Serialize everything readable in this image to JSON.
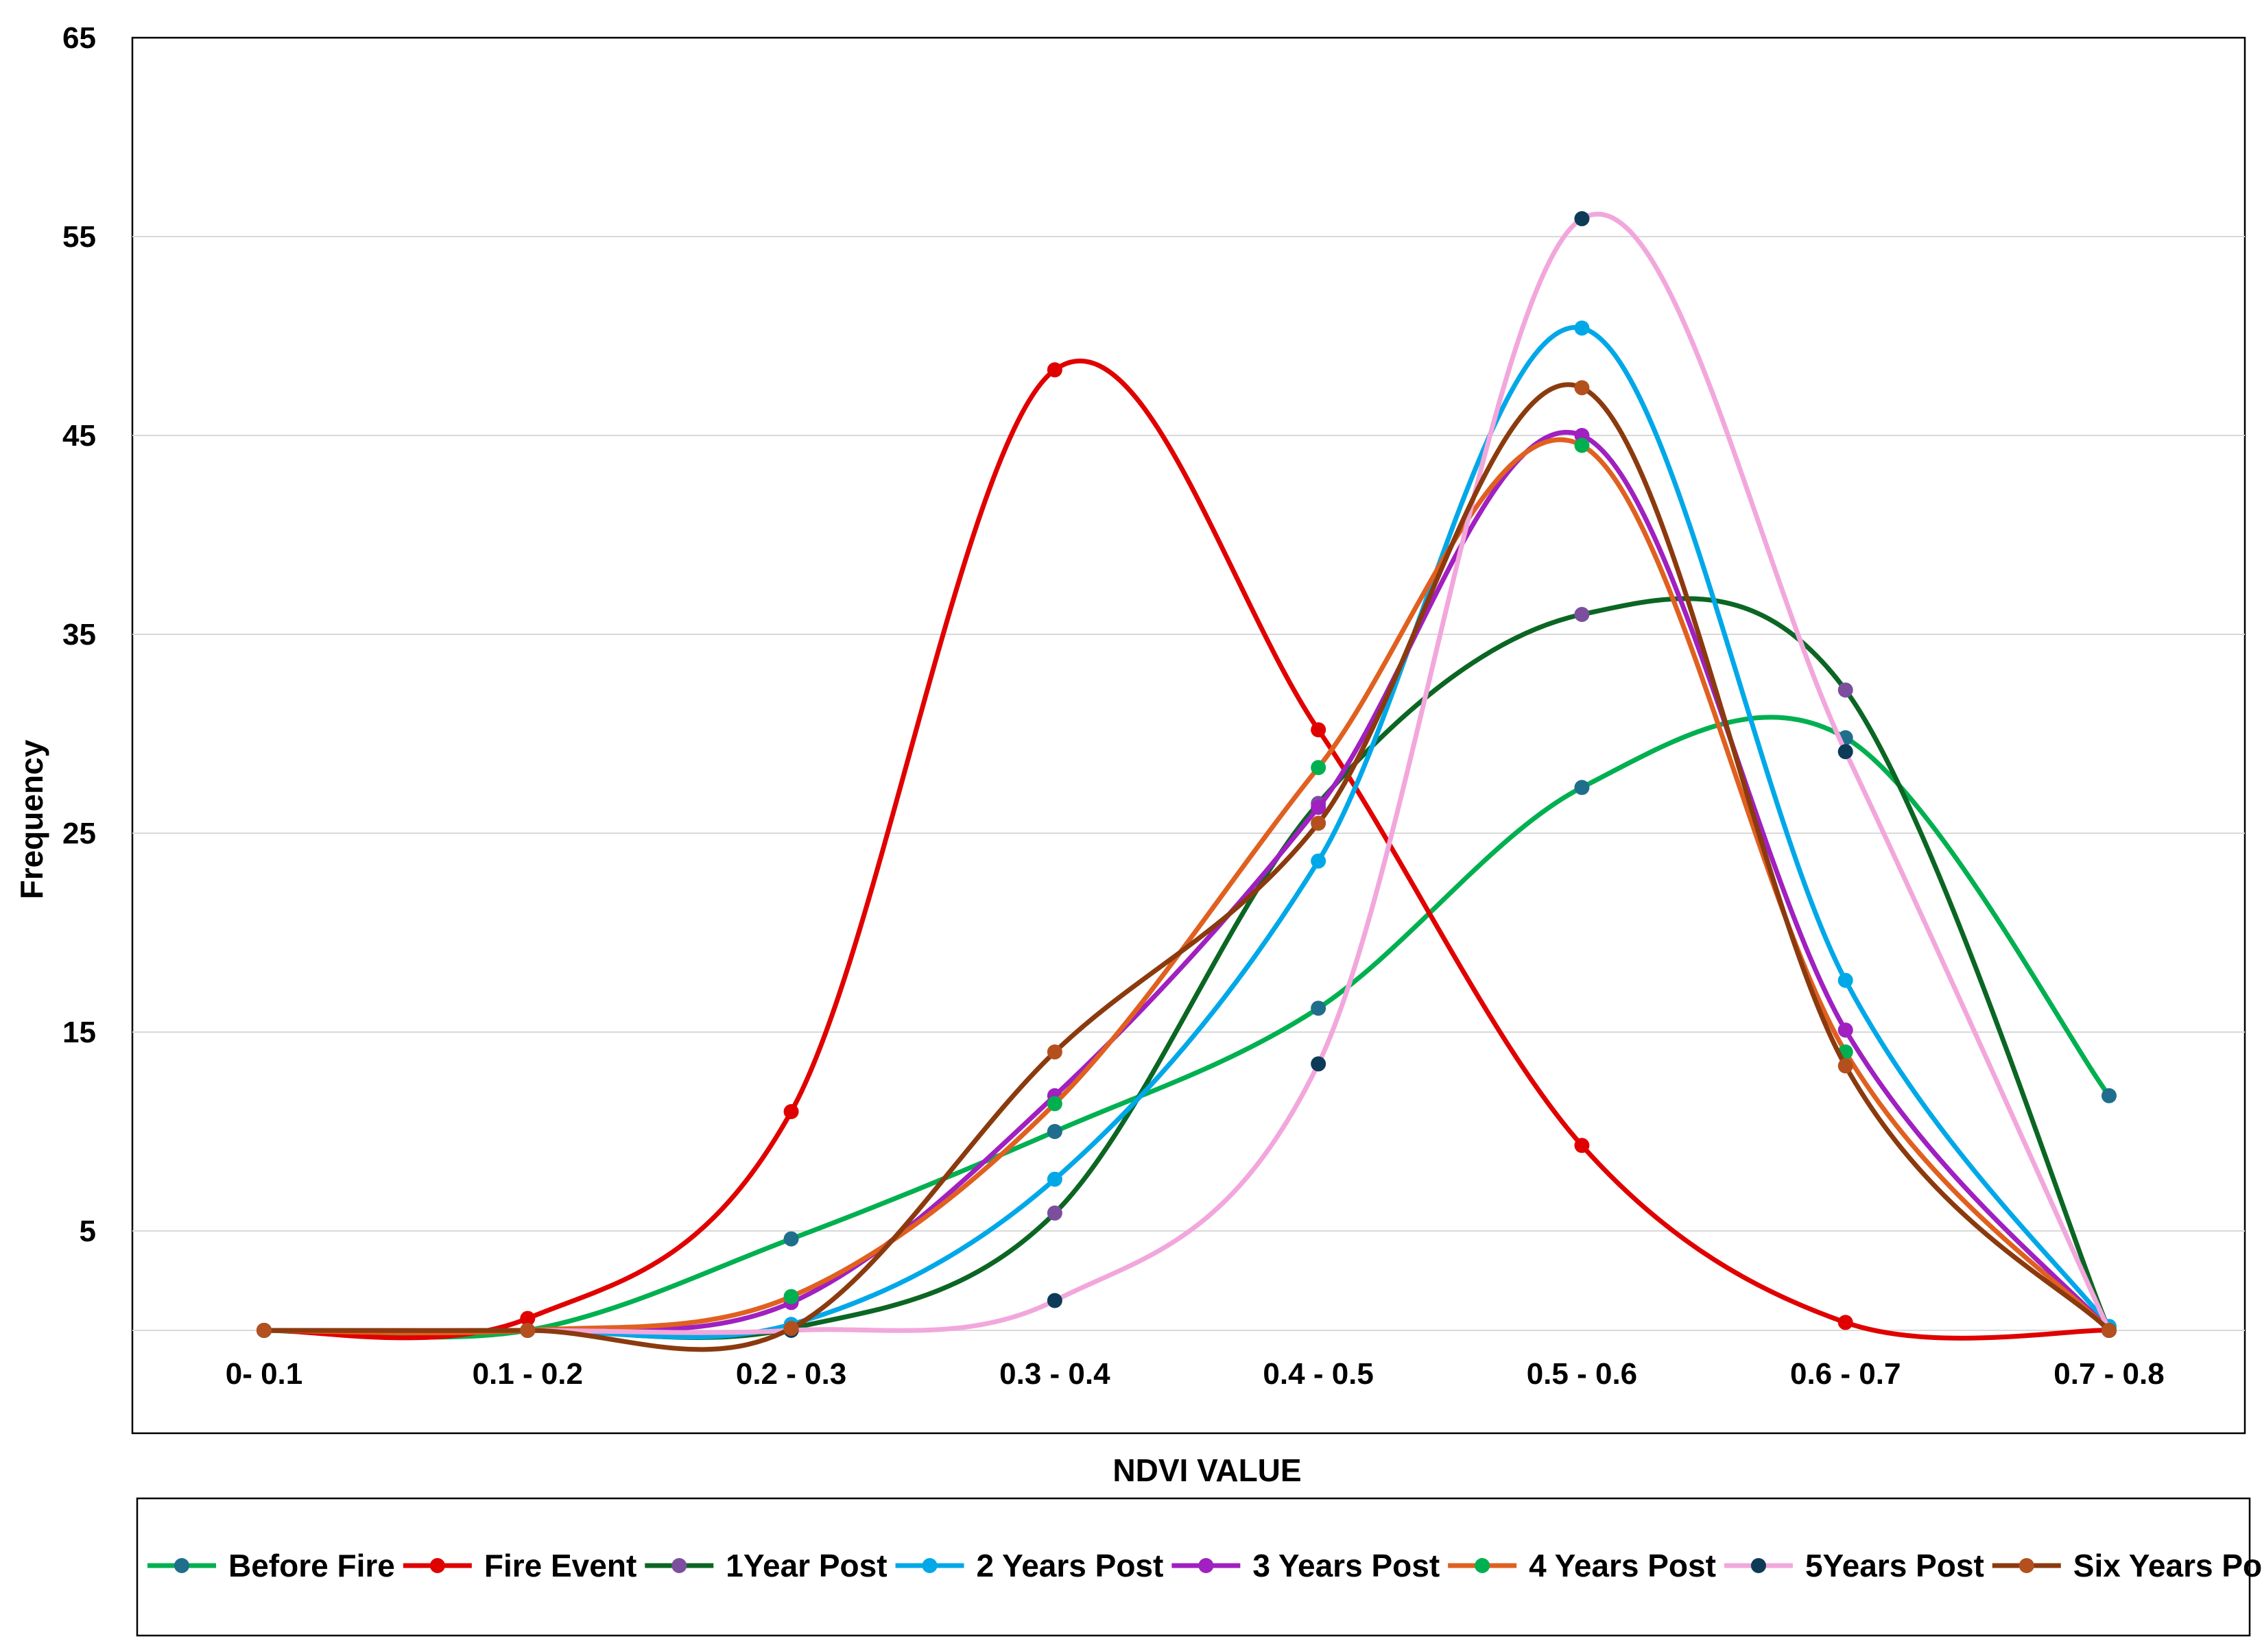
{
  "chart_data": {
    "type": "line",
    "title": "",
    "xlabel": "NDVI VALUE",
    "ylabel": "Frequency",
    "categories": [
      "0- 0.1",
      "0.1 - 0.2",
      "0.2 - 0.3",
      "0.3 - 0.4",
      "0.4 - 0.5",
      "0.5 - 0.6",
      "0.6 - 0.7",
      "0.7 - 0.8"
    ],
    "ylim": [
      -5,
      65
    ],
    "yticks": [
      5,
      15,
      25,
      35,
      45,
      55,
      65
    ],
    "grid": true,
    "legend_position": "bottom",
    "series": [
      {
        "name": "Before Fire",
        "color": "#00B050",
        "marker_color": "#1F6E8C",
        "values": [
          0,
          0,
          4.6,
          10,
          16.2,
          27.3,
          29.8,
          11.8
        ]
      },
      {
        "name": "Fire Event",
        "color": "#E00000",
        "marker_color": "#E00000",
        "values": [
          0,
          0.6,
          11,
          48.3,
          30.2,
          9.3,
          0.4,
          0
        ]
      },
      {
        "name": "1Year Post",
        "color": "#0B6623",
        "marker_color": "#7B4F9E",
        "values": [
          0,
          0,
          0.1,
          5.9,
          26.5,
          36,
          32.2,
          0
        ]
      },
      {
        "name": "2 Years Post",
        "color": "#00A8E8",
        "marker_color": "#00A8E8",
        "values": [
          0,
          0,
          0.3,
          7.6,
          23.6,
          50.4,
          17.6,
          0.2
        ]
      },
      {
        "name": "3 Years Post",
        "color": "#A020C0",
        "marker_color": "#A020C0",
        "values": [
          0,
          0,
          1.4,
          11.8,
          26.3,
          45,
          15.1,
          0
        ]
      },
      {
        "name": "4 Years Post",
        "color": "#E06020",
        "marker_color": "#00B050",
        "values": [
          0,
          0,
          1.7,
          11.4,
          28.3,
          44.5,
          14,
          0
        ]
      },
      {
        "name": "5Years Post",
        "color": "#F2A7DC",
        "marker_color": "#0D3B57",
        "values": [
          0,
          0,
          0,
          1.5,
          13.4,
          55.9,
          29.1,
          0
        ]
      },
      {
        "name": "Six Years Post",
        "color": "#8B3A0E",
        "marker_color": "#B4501E",
        "values": [
          0,
          0,
          0.1,
          14,
          25.5,
          47.4,
          13.3,
          0
        ]
      }
    ]
  }
}
